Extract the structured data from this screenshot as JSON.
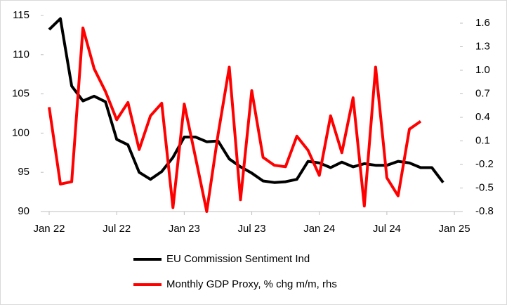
{
  "chart_data": {
    "type": "line",
    "categories": [
      "Jan 22",
      null,
      null,
      null,
      null,
      null,
      "Jul 22",
      null,
      null,
      null,
      null,
      null,
      "Jan 23",
      null,
      null,
      null,
      null,
      null,
      "Jul 23",
      null,
      null,
      null,
      null,
      null,
      "Jan 24",
      null,
      null,
      null,
      null,
      null,
      "Jul 24",
      null,
      null,
      null,
      null,
      null,
      "Jan 25"
    ],
    "series": [
      {
        "name": "EU Commission Sentiment Ind",
        "color": "#000000",
        "axis": "y",
        "values": [
          113.2,
          114.6,
          106,
          104.1,
          104.7,
          104,
          99.2,
          98.5,
          95.0,
          94.1,
          95.1,
          96.9,
          99.5,
          99.5,
          98.9,
          99.0,
          96.7,
          95.7,
          94.9,
          93.9,
          93.7,
          93.8,
          94.1,
          96.4,
          96.2,
          95.6,
          96.3,
          95.7,
          96.1,
          95.9,
          95.9,
          96.4,
          96.2,
          95.6,
          95.6,
          93.7,
          null
        ]
      },
      {
        "name": "Monthly GDP Proxy, % chg m/m, rhs",
        "color": "#ff0000",
        "axis": "y2",
        "values": [
          0.53,
          -0.45,
          -0.42,
          1.54,
          1.02,
          0.73,
          0.37,
          0.59,
          -0.01,
          0.42,
          0.58,
          -0.75,
          0.57,
          -0.11,
          -0.8,
          0.18,
          1.04,
          -0.65,
          0.74,
          -0.11,
          -0.21,
          -0.23,
          0.16,
          -0.02,
          -0.34,
          0.42,
          -0.05,
          0.65,
          -0.73,
          1.04,
          -0.37,
          -0.6,
          0.25,
          0.35,
          null,
          null,
          null
        ]
      }
    ],
    "ylim": [
      90,
      115
    ],
    "yticks": [
      90,
      95,
      100,
      105,
      110,
      115
    ],
    "y2lim": [
      -0.8,
      1.6
    ],
    "y2ticks": [
      -0.8,
      -0.5,
      -0.2,
      0.1,
      0.4,
      0.7,
      {
        "value": 1,
        "label": "1.0"
      },
      1.3,
      1.6
    ]
  }
}
